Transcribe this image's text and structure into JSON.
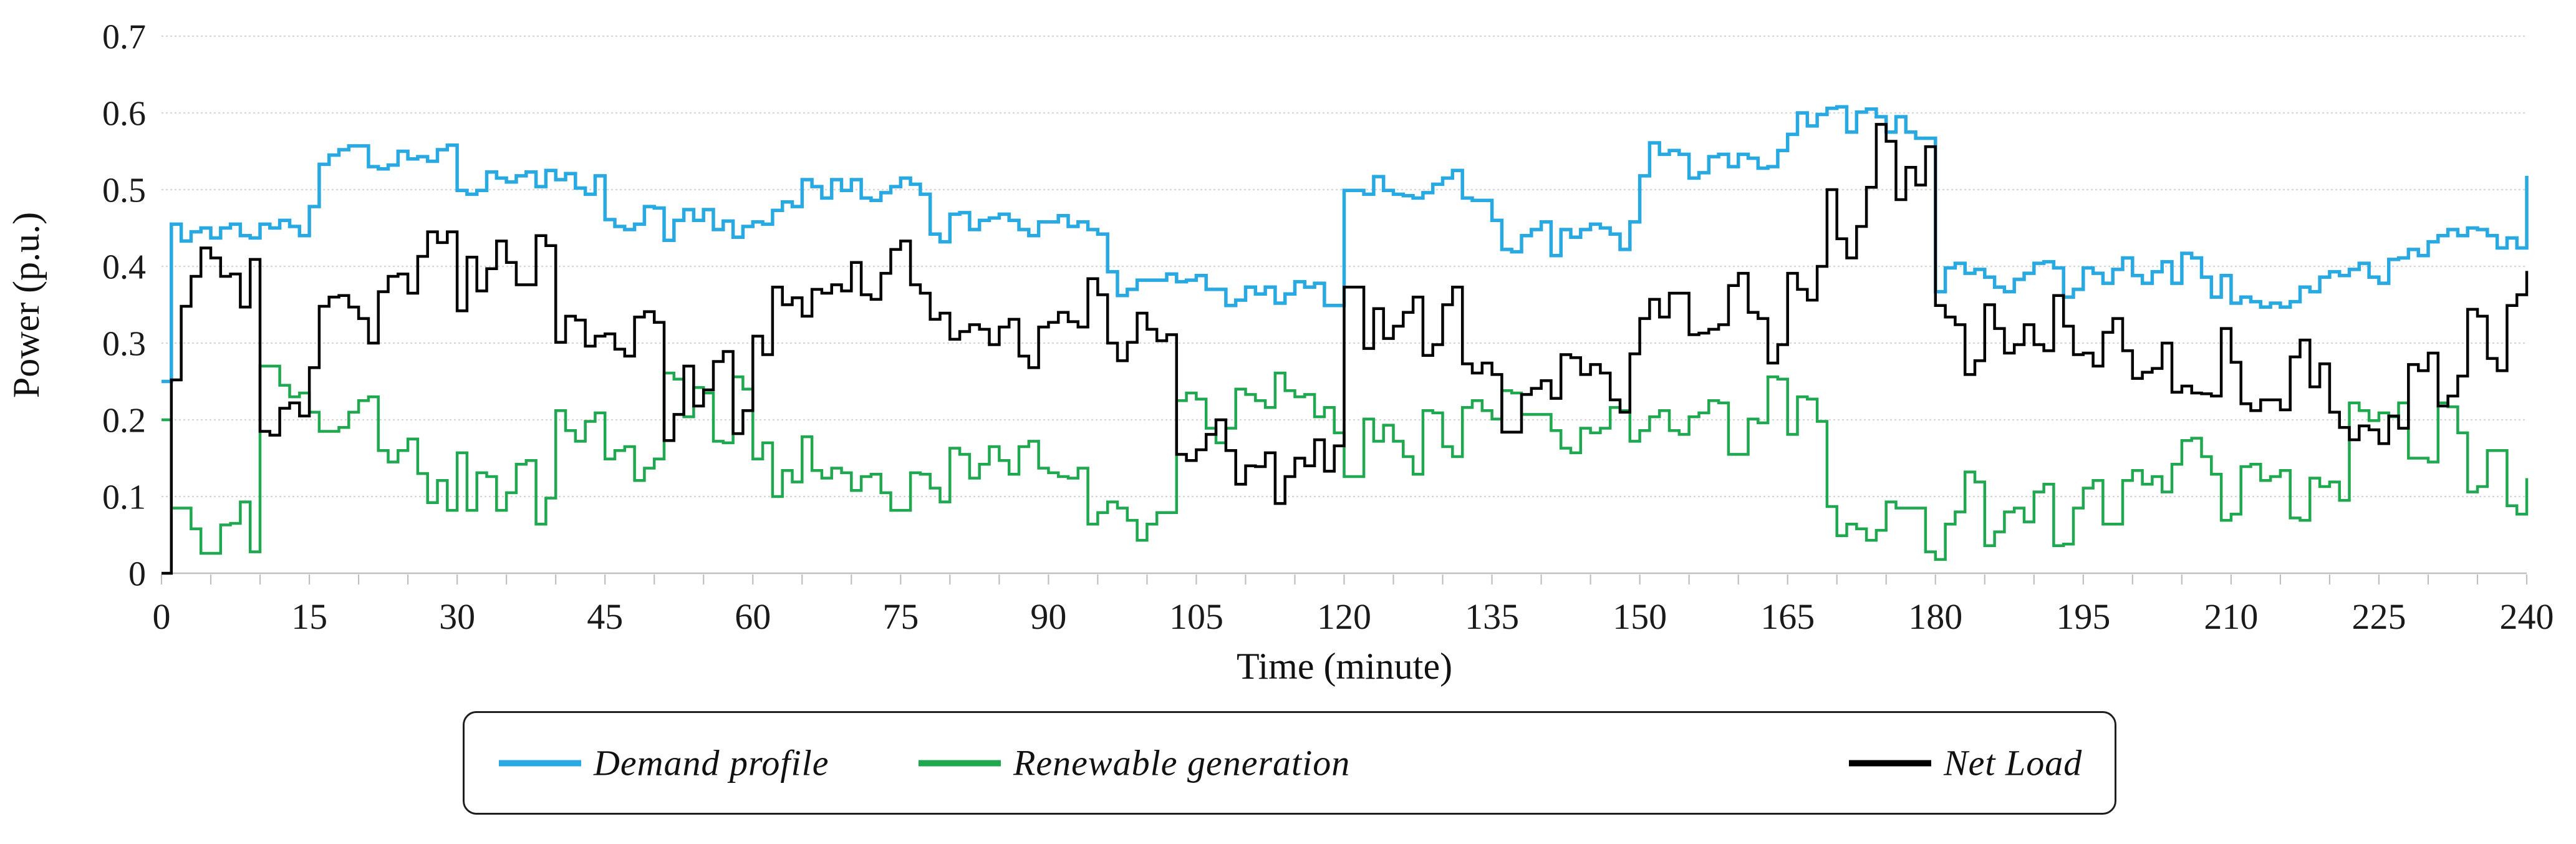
{
  "chart_data": {
    "type": "line",
    "line_style": "step-after",
    "title": "",
    "xlabel": "Time (minute)",
    "ylabel": "Power (p.u.)",
    "xlim": [
      0,
      240
    ],
    "ylim": [
      0,
      0.7
    ],
    "x_ticks": [
      0,
      15,
      30,
      45,
      60,
      75,
      90,
      105,
      120,
      135,
      150,
      165,
      180,
      195,
      210,
      225,
      240
    ],
    "x_minor_tick_step": 5,
    "y_ticks": [
      0,
      0.1,
      0.2,
      0.3,
      0.4,
      0.5,
      0.6,
      0.7
    ],
    "y_tick_labels": [
      "0",
      "0.1",
      "0.2",
      "0.3",
      "0.4",
      "0.5",
      "0.6",
      "0.7"
    ],
    "grid": "horizontal",
    "grid_color": "#D6D6D6",
    "axis_color": "#BFBFBF",
    "legend_position": "bottom",
    "x_start_minute": 0,
    "x_step_minutes": 1,
    "series": [
      {
        "name": "Demand profile",
        "color": "#29A9E1",
        "values": [
          0.25,
          0.455,
          0.433,
          0.445,
          0.45,
          0.437,
          0.45,
          0.455,
          0.44,
          0.437,
          0.455,
          0.45,
          0.46,
          0.452,
          0.44,
          0.478,
          0.533,
          0.545,
          0.552,
          0.557,
          0.557,
          0.53,
          0.527,
          0.532,
          0.55,
          0.54,
          0.543,
          0.537,
          0.552,
          0.558,
          0.499,
          0.494,
          0.499,
          0.523,
          0.515,
          0.51,
          0.518,
          0.523,
          0.504,
          0.525,
          0.513,
          0.521,
          0.502,
          0.494,
          0.518,
          0.461,
          0.452,
          0.448,
          0.455,
          0.478,
          0.476,
          0.434,
          0.46,
          0.474,
          0.46,
          0.474,
          0.448,
          0.459,
          0.438,
          0.452,
          0.458,
          0.455,
          0.473,
          0.484,
          0.478,
          0.513,
          0.504,
          0.489,
          0.513,
          0.499,
          0.513,
          0.489,
          0.486,
          0.496,
          0.504,
          0.515,
          0.507,
          0.494,
          0.442,
          0.432,
          0.468,
          0.47,
          0.448,
          0.46,
          0.463,
          0.468,
          0.46,
          0.448,
          0.44,
          0.458,
          0.458,
          0.466,
          0.452,
          0.458,
          0.448,
          0.442,
          0.393,
          0.362,
          0.37,
          0.382,
          0.382,
          0.382,
          0.39,
          0.38,
          0.382,
          0.388,
          0.37,
          0.37,
          0.349,
          0.356,
          0.373,
          0.364,
          0.373,
          0.352,
          0.364,
          0.38,
          0.373,
          0.378,
          0.349,
          0.349,
          0.499,
          0.499,
          0.494,
          0.517,
          0.499,
          0.494,
          0.492,
          0.489,
          0.496,
          0.507,
          0.515,
          0.525,
          0.489,
          0.486,
          0.486,
          0.46,
          0.422,
          0.419,
          0.44,
          0.448,
          0.458,
          0.414,
          0.448,
          0.438,
          0.448,
          0.455,
          0.45,
          0.442,
          0.422,
          0.458,
          0.518,
          0.561,
          0.546,
          0.551,
          0.546,
          0.515,
          0.522,
          0.543,
          0.546,
          0.53,
          0.546,
          0.541,
          0.528,
          0.53,
          0.551,
          0.572,
          0.6,
          0.583,
          0.598,
          0.606,
          0.608,
          0.575,
          0.601,
          0.605,
          0.595,
          0.575,
          0.595,
          0.575,
          0.567,
          0.567,
          0.367,
          0.398,
          0.404,
          0.391,
          0.396,
          0.386,
          0.373,
          0.367,
          0.383,
          0.391,
          0.404,
          0.406,
          0.398,
          0.36,
          0.37,
          0.398,
          0.391,
          0.378,
          0.396,
          0.411,
          0.388,
          0.378,
          0.393,
          0.406,
          0.378,
          0.417,
          0.411,
          0.386,
          0.36,
          0.388,
          0.352,
          0.36,
          0.354,
          0.347,
          0.352,
          0.347,
          0.354,
          0.373,
          0.367,
          0.386,
          0.393,
          0.388,
          0.396,
          0.404,
          0.386,
          0.378,
          0.409,
          0.411,
          0.422,
          0.414,
          0.432,
          0.44,
          0.448,
          0.44,
          0.45,
          0.448,
          0.44,
          0.424,
          0.437,
          0.424,
          0.518
        ]
      },
      {
        "name": "Renewable generation",
        "color": "#1FA84F",
        "values": [
          0.2,
          0.085,
          0.085,
          0.058,
          0.026,
          0.026,
          0.063,
          0.065,
          0.093,
          0.028,
          0.27,
          0.27,
          0.245,
          0.23,
          0.235,
          0.21,
          0.185,
          0.185,
          0.19,
          0.21,
          0.225,
          0.23,
          0.16,
          0.145,
          0.16,
          0.175,
          0.13,
          0.092,
          0.121,
          0.082,
          0.157,
          0.082,
          0.131,
          0.126,
          0.082,
          0.105,
          0.142,
          0.147,
          0.064,
          0.098,
          0.212,
          0.186,
          0.172,
          0.198,
          0.209,
          0.149,
          0.16,
          0.165,
          0.121,
          0.137,
          0.149,
          0.261,
          0.253,
          0.204,
          0.242,
          0.235,
          0.172,
          0.17,
          0.256,
          0.24,
          0.149,
          0.17,
          0.1,
          0.134,
          0.119,
          0.178,
          0.134,
          0.124,
          0.137,
          0.131,
          0.108,
          0.126,
          0.129,
          0.105,
          0.082,
          0.082,
          0.131,
          0.129,
          0.111,
          0.093,
          0.163,
          0.155,
          0.124,
          0.142,
          0.165,
          0.147,
          0.129,
          0.165,
          0.172,
          0.137,
          0.131,
          0.126,
          0.124,
          0.137,
          0.064,
          0.079,
          0.093,
          0.085,
          0.069,
          0.043,
          0.064,
          0.079,
          0.079,
          0.225,
          0.235,
          0.227,
          0.189,
          0.17,
          0.189,
          0.24,
          0.233,
          0.225,
          0.216,
          0.261,
          0.238,
          0.23,
          0.233,
          0.204,
          0.216,
          0.183,
          0.126,
          0.126,
          0.201,
          0.172,
          0.193,
          0.172,
          0.152,
          0.129,
          0.212,
          0.209,
          0.165,
          0.152,
          0.216,
          0.225,
          0.212,
          0.201,
          0.238,
          0.235,
          0.207,
          0.207,
          0.207,
          0.186,
          0.163,
          0.157,
          0.189,
          0.183,
          0.189,
          0.216,
          0.212,
          0.172,
          0.186,
          0.204,
          0.212,
          0.186,
          0.181,
          0.204,
          0.209,
          0.225,
          0.222,
          0.155,
          0.155,
          0.201,
          0.196,
          0.256,
          0.253,
          0.181,
          0.23,
          0.227,
          0.198,
          0.087,
          0.049,
          0.064,
          0.058,
          0.043,
          0.056,
          0.093,
          0.085,
          0.085,
          0.085,
          0.028,
          0.018,
          0.064,
          0.08,
          0.132,
          0.119,
          0.036,
          0.054,
          0.08,
          0.085,
          0.067,
          0.106,
          0.116,
          0.036,
          0.038,
          0.085,
          0.111,
          0.121,
          0.064,
          0.064,
          0.121,
          0.134,
          0.116,
          0.126,
          0.106,
          0.142,
          0.173,
          0.176,
          0.152,
          0.129,
          0.069,
          0.077,
          0.139,
          0.142,
          0.121,
          0.126,
          0.134,
          0.072,
          0.069,
          0.124,
          0.113,
          0.119,
          0.095,
          0.222,
          0.212,
          0.199,
          0.209,
          0.204,
          0.222,
          0.15,
          0.15,
          0.145,
          0.222,
          0.217,
          0.183,
          0.106,
          0.113,
          0.16,
          0.16,
          0.088,
          0.077,
          0.124
        ]
      },
      {
        "name": "Net Load",
        "color": "#000000",
        "values": [
          0,
          0.252,
          0.348,
          0.387,
          0.424,
          0.411,
          0.387,
          0.39,
          0.347,
          0.409,
          0.185,
          0.18,
          0.215,
          0.222,
          0.205,
          0.268,
          0.348,
          0.36,
          0.362,
          0.347,
          0.332,
          0.3,
          0.367,
          0.387,
          0.39,
          0.365,
          0.413,
          0.445,
          0.431,
          0.445,
          0.342,
          0.412,
          0.368,
          0.397,
          0.433,
          0.405,
          0.376,
          0.376,
          0.44,
          0.427,
          0.301,
          0.335,
          0.33,
          0.296,
          0.309,
          0.312,
          0.292,
          0.283,
          0.334,
          0.341,
          0.327,
          0.173,
          0.207,
          0.27,
          0.218,
          0.239,
          0.276,
          0.289,
          0.182,
          0.212,
          0.309,
          0.285,
          0.373,
          0.35,
          0.359,
          0.335,
          0.37,
          0.365,
          0.376,
          0.368,
          0.405,
          0.363,
          0.357,
          0.391,
          0.422,
          0.433,
          0.376,
          0.365,
          0.331,
          0.339,
          0.305,
          0.315,
          0.324,
          0.318,
          0.298,
          0.321,
          0.331,
          0.283,
          0.268,
          0.321,
          0.327,
          0.34,
          0.328,
          0.321,
          0.384,
          0.363,
          0.3,
          0.277,
          0.301,
          0.339,
          0.318,
          0.303,
          0.311,
          0.155,
          0.147,
          0.161,
          0.181,
          0.2,
          0.16,
          0.116,
          0.14,
          0.139,
          0.157,
          0.091,
          0.126,
          0.15,
          0.14,
          0.174,
          0.133,
          0.166,
          0.373,
          0.373,
          0.293,
          0.345,
          0.306,
          0.322,
          0.34,
          0.36,
          0.284,
          0.298,
          0.35,
          0.373,
          0.273,
          0.261,
          0.274,
          0.259,
          0.184,
          0.184,
          0.233,
          0.241,
          0.251,
          0.228,
          0.285,
          0.281,
          0.259,
          0.272,
          0.261,
          0.226,
          0.21,
          0.286,
          0.332,
          0.357,
          0.334,
          0.365,
          0.365,
          0.311,
          0.313,
          0.318,
          0.324,
          0.375,
          0.391,
          0.34,
          0.332,
          0.274,
          0.298,
          0.391,
          0.37,
          0.356,
          0.4,
          0.5,
          0.436,
          0.411,
          0.452,
          0.503,
          0.585,
          0.563,
          0.487,
          0.529,
          0.506,
          0.556,
          0.349,
          0.334,
          0.324,
          0.259,
          0.277,
          0.35,
          0.319,
          0.287,
          0.298,
          0.324,
          0.298,
          0.29,
          0.362,
          0.322,
          0.285,
          0.287,
          0.27,
          0.314,
          0.332,
          0.29,
          0.254,
          0.262,
          0.267,
          0.3,
          0.236,
          0.244,
          0.235,
          0.234,
          0.231,
          0.319,
          0.275,
          0.221,
          0.212,
          0.226,
          0.226,
          0.213,
          0.282,
          0.304,
          0.243,
          0.273,
          0.21,
          0.19,
          0.174,
          0.192,
          0.187,
          0.169,
          0.205,
          0.189,
          0.272,
          0.264,
          0.287,
          0.218,
          0.231,
          0.257,
          0.344,
          0.335,
          0.28,
          0.264,
          0.349,
          0.363,
          0.394
        ]
      }
    ]
  }
}
